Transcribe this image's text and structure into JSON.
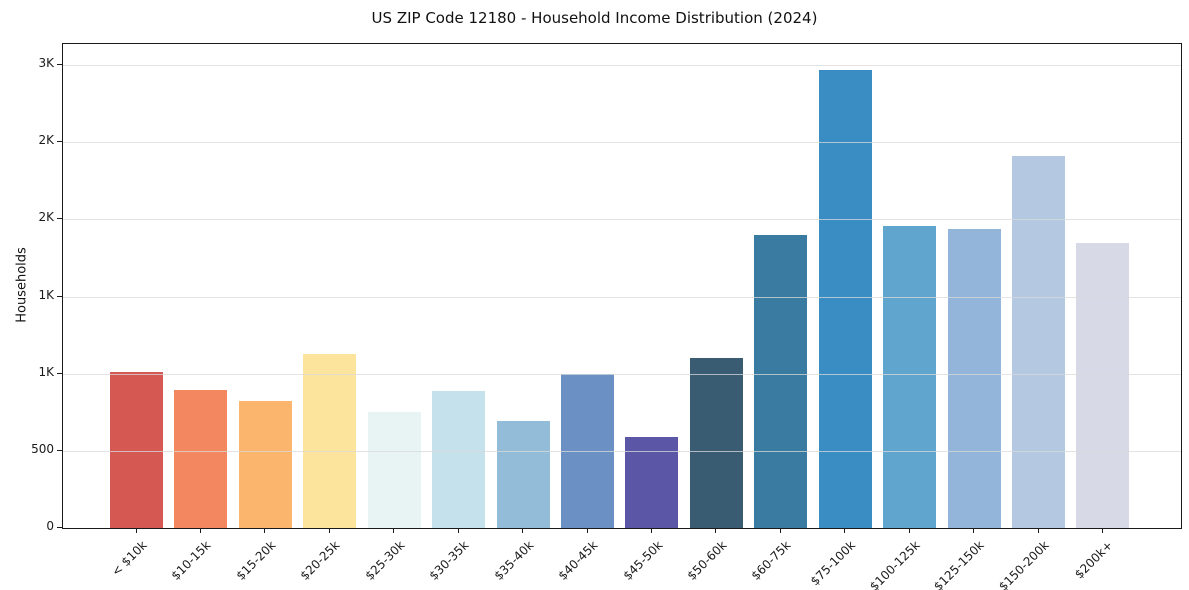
{
  "title": "US ZIP Code 12180 - Household Income Distribution (2024)",
  "chart_data": {
    "type": "bar",
    "title": "US ZIP Code 12180 - Household Income Distribution (2024)",
    "xlabel": "",
    "ylabel": "Households",
    "categories": [
      "< $10k",
      "$10-15k",
      "$15-20k",
      "$20-25k",
      "$25-30k",
      "$30-35k",
      "$35-40k",
      "$40-45k",
      "$45-50k",
      "$50-60k",
      "$60-75k",
      "$75-100k",
      "$100-125k",
      "$125-150k",
      "$150-200k",
      "$200k+"
    ],
    "values": [
      1010,
      895,
      820,
      1130,
      750,
      890,
      695,
      1000,
      590,
      1100,
      1900,
      2970,
      1955,
      1935,
      2410,
      1845
    ],
    "bar_colors": [
      "#d65853",
      "#f3875f",
      "#fbb56c",
      "#fde49c",
      "#e8f4f4",
      "#c5e1ec",
      "#93bcd8",
      "#6b90c3",
      "#5b57a6",
      "#395c73",
      "#3a7ca1",
      "#398dc2",
      "#60a5cd",
      "#92b5d9",
      "#b4c8e1",
      "#d8d9e7"
    ],
    "ylim": [
      0,
      3136
    ],
    "yticks": [
      {
        "value": 0,
        "label": "0"
      },
      {
        "value": 500,
        "label": "500"
      },
      {
        "value": 1000,
        "label": "1K"
      },
      {
        "value": 1500,
        "label": "1K"
      },
      {
        "value": 2000,
        "label": "2K"
      },
      {
        "value": 2500,
        "label": "2K"
      },
      {
        "value": 3000,
        "label": "3K"
      }
    ],
    "grid": "horizontal light-gray lines drawn over bars",
    "legend_position": "none",
    "x_tick_rotation_deg": 45
  }
}
